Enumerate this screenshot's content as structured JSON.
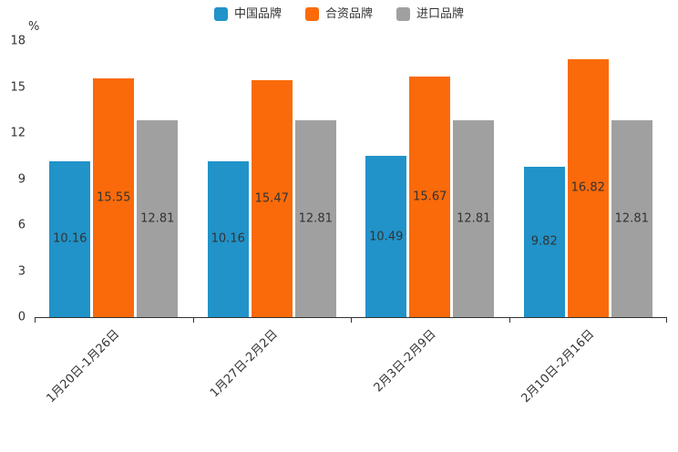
{
  "chart_data": {
    "type": "bar",
    "title": "",
    "categories": [
      "1月20日-1月26日",
      "1月27日-2月2日",
      "2月3日-2月9日",
      "2月10日-2月16日"
    ],
    "series": [
      {
        "name": "中国品牌",
        "color": "#2193c9",
        "values": [
          10.16,
          10.16,
          10.49,
          9.82
        ]
      },
      {
        "name": "合资品牌",
        "color": "#fa6a0a",
        "values": [
          15.55,
          15.47,
          15.67,
          16.82
        ]
      },
      {
        "name": "进口品牌",
        "color": "#a0a0a0",
        "values": [
          12.81,
          12.81,
          12.81,
          12.81
        ]
      }
    ],
    "xlabel": "",
    "ylabel": "%",
    "ylim": [
      0,
      18
    ],
    "yticks": [
      0,
      3,
      6,
      9,
      12,
      15,
      18
    ],
    "grid": false,
    "legend_position": "top",
    "data_label_color": "#333333",
    "axis_color": "#333333"
  }
}
